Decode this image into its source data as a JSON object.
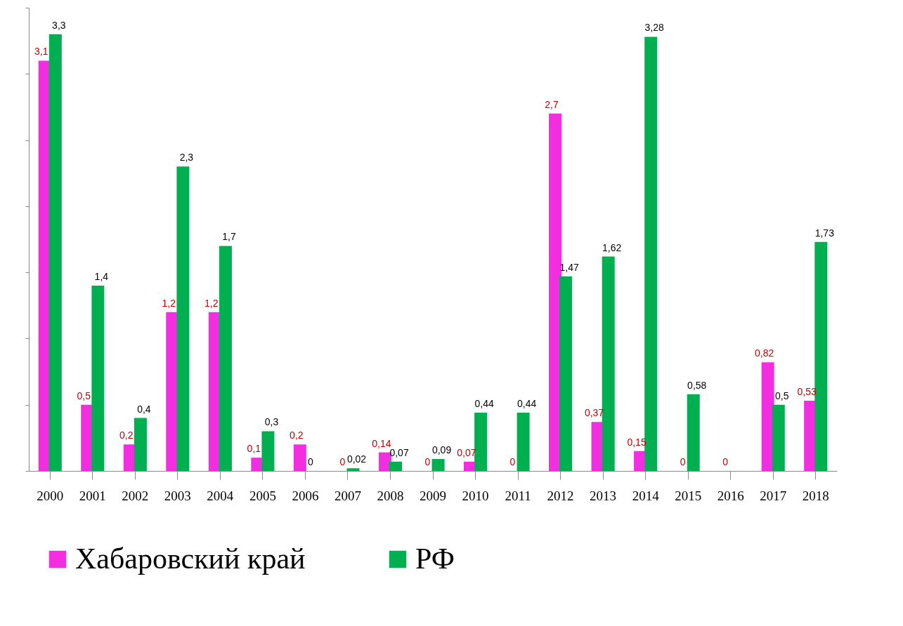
{
  "chart_data": {
    "type": "bar",
    "categories": [
      "2000",
      "2001",
      "2002",
      "2003",
      "2004",
      "2005",
      "2006",
      "2007",
      "2008",
      "2009",
      "2010",
      "2011",
      "2012",
      "2013",
      "2014",
      "2015",
      "2016",
      "2017",
      "2018"
    ],
    "series": [
      {
        "name": "Хабаровский край",
        "color": "#f22ee0",
        "values": [
          3.1,
          0.5,
          0.2,
          1.2,
          1.2,
          0.1,
          0.2,
          0,
          0.14,
          0,
          0.07,
          0,
          2.7,
          0.37,
          0.15,
          0,
          0,
          0.82,
          0.53
        ],
        "value_labels": [
          "3,1",
          "0,5",
          "0,2",
          "1,2",
          "1,2",
          "0,1",
          "0,2",
          "0",
          "0,14",
          "0",
          "0,07",
          "0",
          "2,7",
          "0,37",
          "0,15",
          "0",
          "0",
          "0,82",
          "0,53"
        ]
      },
      {
        "name": "РФ",
        "color": "#00b050",
        "values": [
          3.3,
          1.4,
          0.4,
          2.3,
          1.7,
          0.3,
          0,
          0.02,
          0.07,
          0.09,
          0.44,
          0.44,
          1.47,
          1.62,
          3.28,
          0.58,
          0,
          0.5,
          1.73
        ],
        "value_labels": [
          "3,3",
          "1,4",
          "0,4",
          "2,3",
          "1,7",
          "0,3",
          "0",
          "0,02",
          "0,07",
          "0,09",
          "0,44",
          "0,44",
          "1,47",
          "1,62",
          "3,28",
          "0,58",
          null,
          "0,5",
          "1,73"
        ]
      }
    ],
    "ylim": [
      0,
      3.5
    ],
    "yticks": [
      {
        "value": 0,
        "label": null
      },
      {
        "value": 0.5,
        "label": null
      },
      {
        "value": 1,
        "label": null
      },
      {
        "value": 1.5,
        "label": null
      },
      {
        "value": 2,
        "label": null
      },
      {
        "value": 2.5,
        "label": null
      },
      {
        "value": 3,
        "label": null
      },
      {
        "value": 3.5,
        "label": null
      }
    ],
    "tick_labels": "x",
    "grid": false,
    "legend": "bottom"
  }
}
